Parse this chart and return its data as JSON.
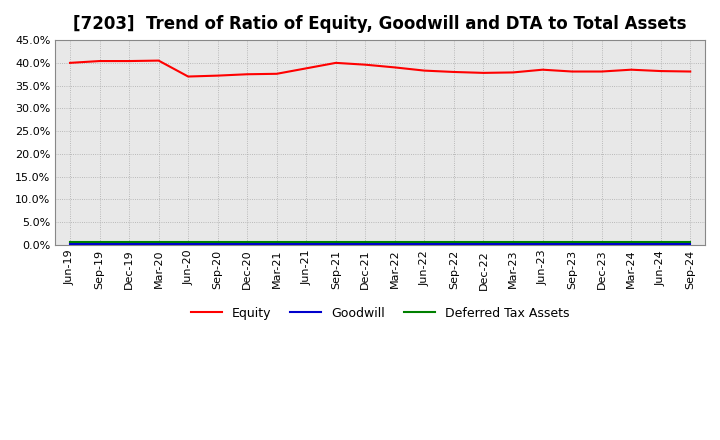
{
  "title": "[7203]  Trend of Ratio of Equity, Goodwill and DTA to Total Assets",
  "xlabels": [
    "Jun-19",
    "Sep-19",
    "Dec-19",
    "Mar-20",
    "Jun-20",
    "Sep-20",
    "Dec-20",
    "Mar-21",
    "Jun-21",
    "Sep-21",
    "Dec-21",
    "Mar-22",
    "Jun-22",
    "Sep-22",
    "Dec-22",
    "Mar-23",
    "Jun-23",
    "Sep-23",
    "Dec-23",
    "Mar-24",
    "Jun-24",
    "Sep-24"
  ],
  "equity": [
    0.4,
    0.404,
    0.404,
    0.405,
    0.37,
    0.372,
    0.375,
    0.376,
    0.388,
    0.4,
    0.396,
    0.39,
    0.383,
    0.38,
    0.378,
    0.379,
    0.385,
    0.381,
    0.381,
    0.385,
    0.382,
    0.381
  ],
  "goodwill": [
    0.003,
    0.003,
    0.003,
    0.003,
    0.003,
    0.003,
    0.003,
    0.003,
    0.003,
    0.003,
    0.003,
    0.003,
    0.003,
    0.003,
    0.003,
    0.003,
    0.003,
    0.003,
    0.003,
    0.003,
    0.003,
    0.003
  ],
  "dta": [
    0.006,
    0.006,
    0.006,
    0.006,
    0.006,
    0.006,
    0.006,
    0.006,
    0.006,
    0.006,
    0.006,
    0.006,
    0.006,
    0.006,
    0.006,
    0.006,
    0.006,
    0.006,
    0.006,
    0.006,
    0.006,
    0.006
  ],
  "equity_color": "#ff0000",
  "goodwill_color": "#0000cc",
  "dta_color": "#008000",
  "ylim": [
    0.0,
    0.45
  ],
  "yticks": [
    0.0,
    0.05,
    0.1,
    0.15,
    0.2,
    0.25,
    0.3,
    0.35,
    0.4,
    0.45
  ],
  "plot_bg_color": "#e8e8e8",
  "fig_bg_color": "#ffffff",
  "grid_color": "#aaaaaa",
  "title_fontsize": 12,
  "tick_fontsize": 8,
  "legend_fontsize": 9
}
